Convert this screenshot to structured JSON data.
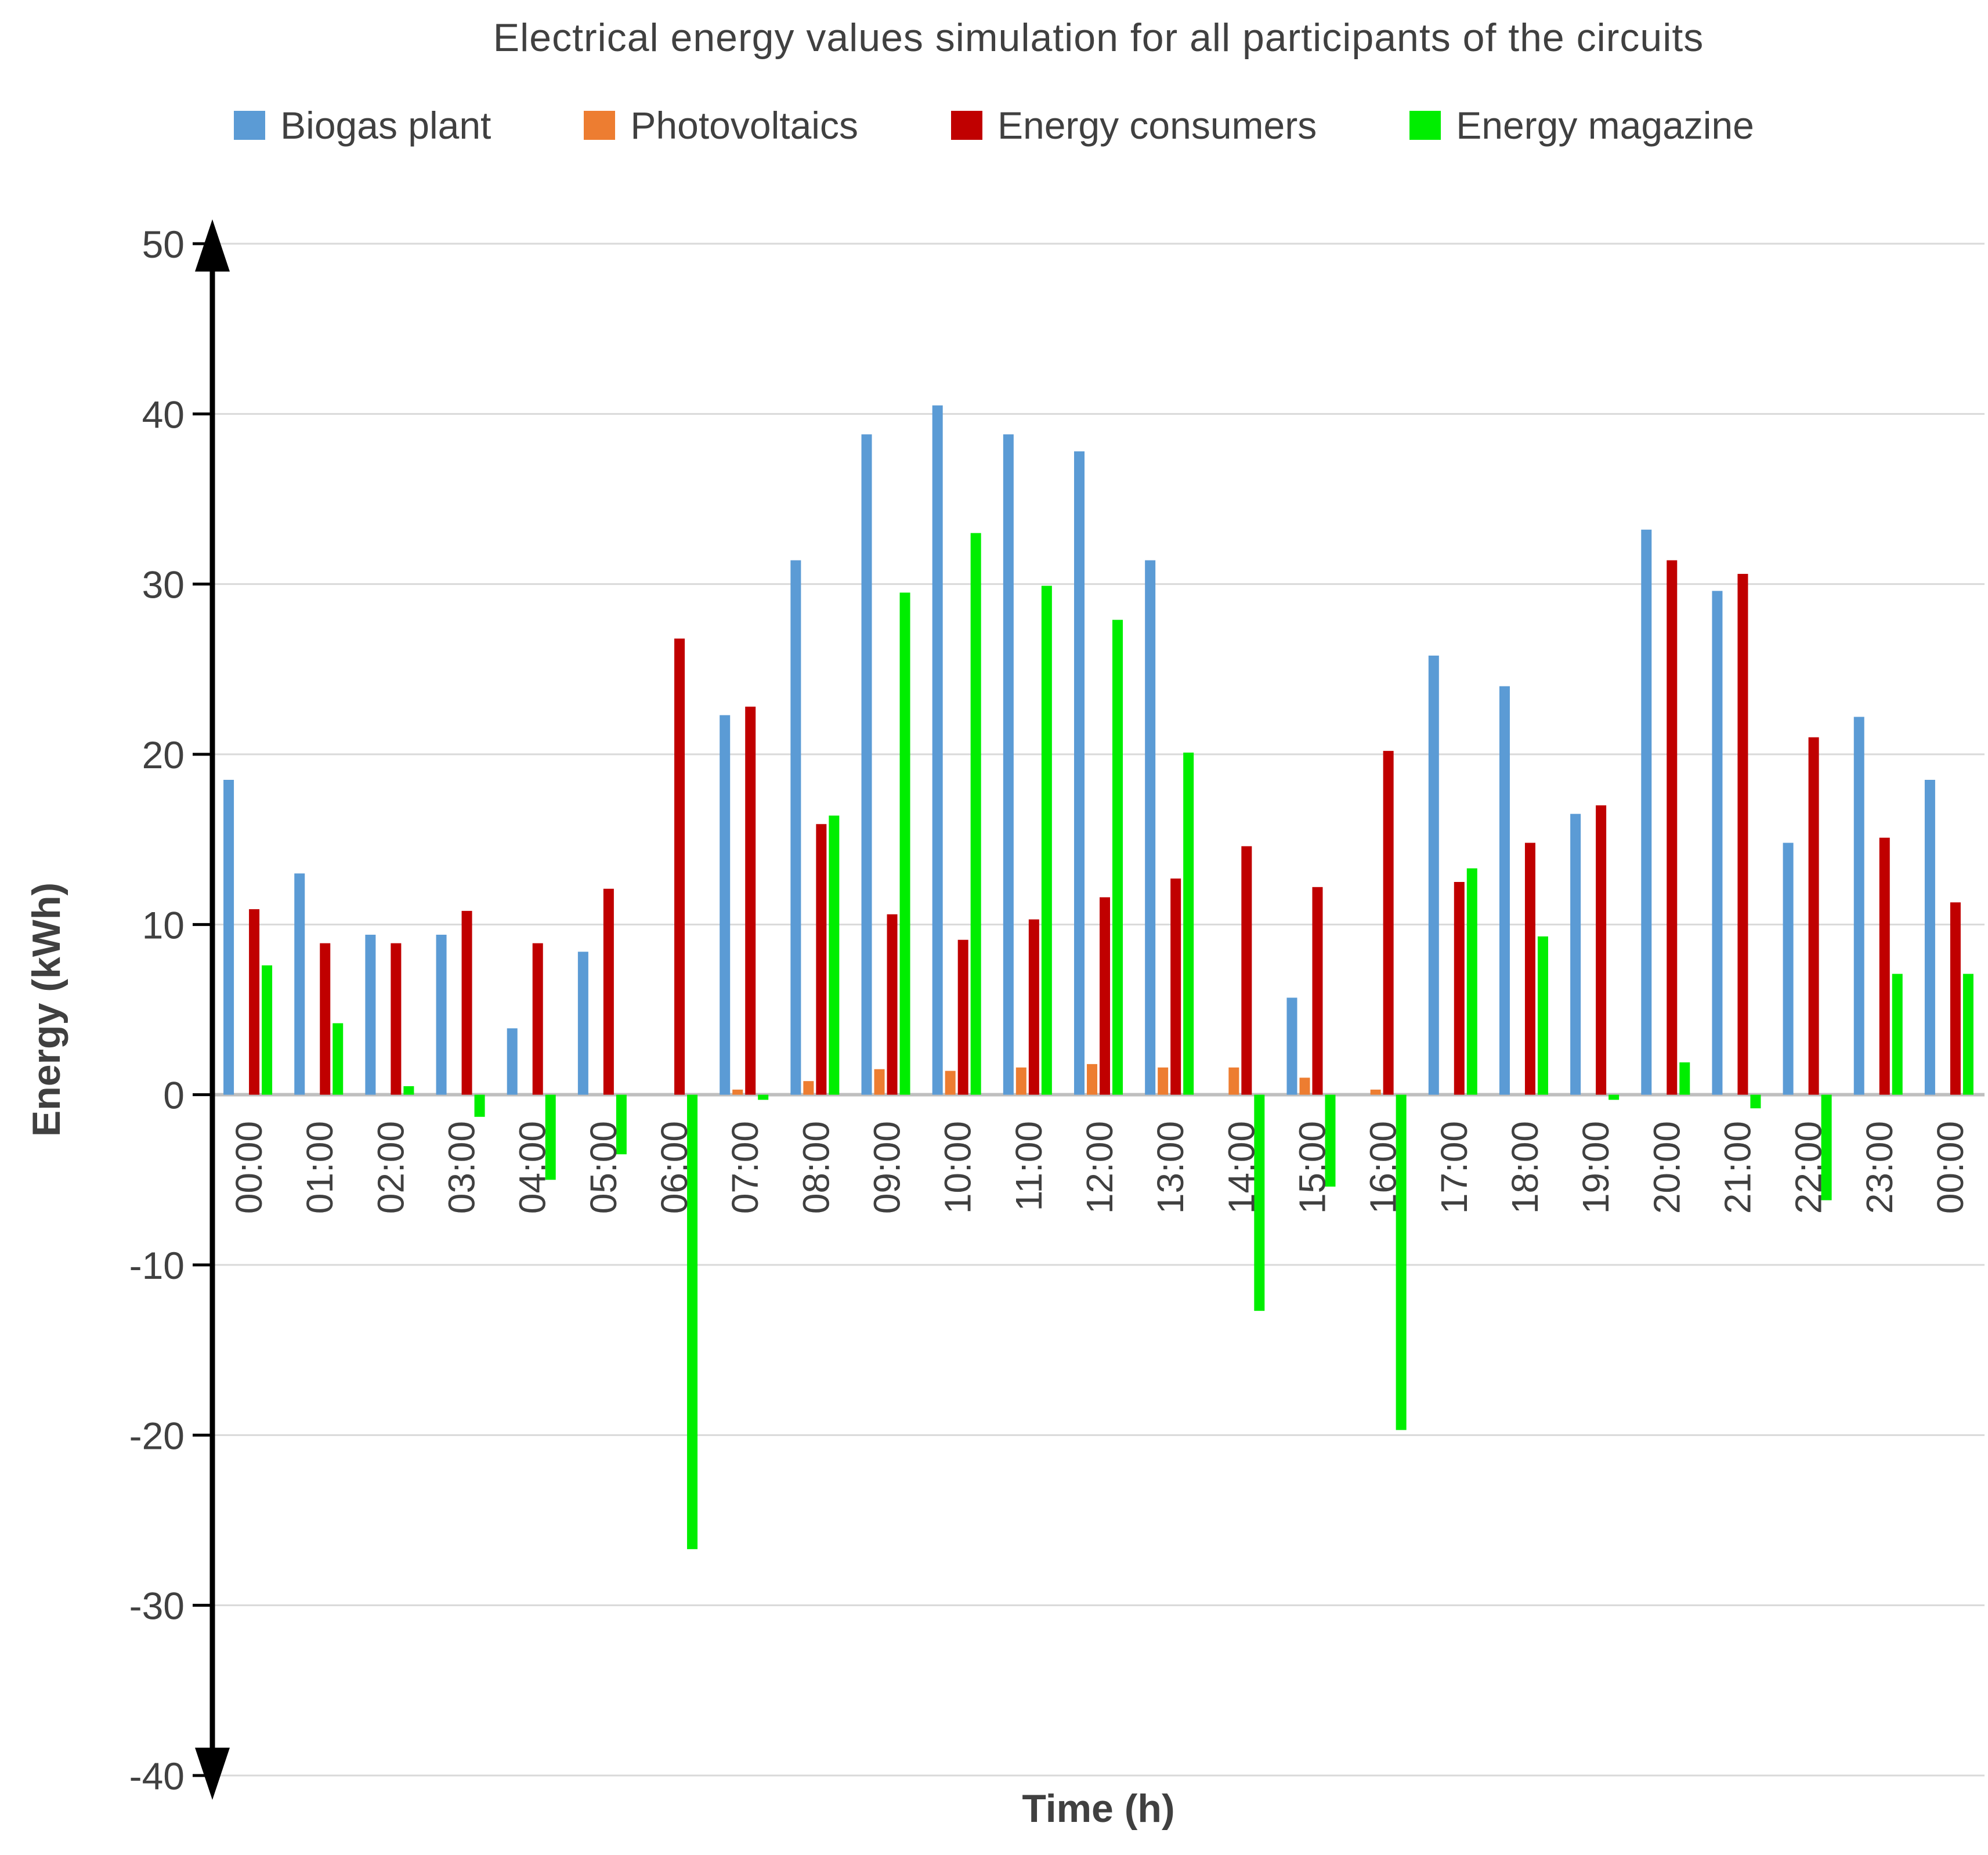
{
  "chart_data": {
    "type": "bar",
    "title": "Electrical energy values simulation for all participants of the circuits",
    "xlabel": "Time (h)",
    "ylabel": "Energy (kWh)",
    "ylim": [
      -40,
      50
    ],
    "ytick_step": 10,
    "grid": true,
    "legend_position": "top",
    "categories": [
      "00:00",
      "01:00",
      "02:00",
      "03:00",
      "04:00",
      "05:00",
      "06:00",
      "07:00",
      "08:00",
      "09:00",
      "10:00",
      "11:00",
      "12:00",
      "13:00",
      "14:00",
      "15:00",
      "16:00",
      "17:00",
      "18:00",
      "19:00",
      "20:00",
      "21:00",
      "22:00",
      "23:00",
      "00:00"
    ],
    "series": [
      {
        "name": "Biogas plant",
        "color": "#5B9BD5",
        "values": [
          18.5,
          13.0,
          9.4,
          9.4,
          3.9,
          8.4,
          0,
          22.3,
          31.4,
          38.8,
          40.5,
          38.8,
          37.8,
          31.4,
          0,
          5.7,
          0,
          25.8,
          24.0,
          16.5,
          33.2,
          29.6,
          14.8,
          22.2,
          18.5
        ]
      },
      {
        "name": "Photovoltaics",
        "color": "#ED7D31",
        "values": [
          0,
          0,
          0,
          0,
          0,
          0,
          0,
          0.3,
          0.8,
          1.5,
          1.4,
          1.6,
          1.8,
          1.6,
          1.6,
          1.0,
          0.3,
          0,
          0,
          0,
          0,
          0,
          0,
          0,
          0
        ]
      },
      {
        "name": "Energy consumers",
        "color": "#C00000",
        "values": [
          10.9,
          8.9,
          8.9,
          10.8,
          8.9,
          12.1,
          26.8,
          22.8,
          15.9,
          10.6,
          9.1,
          10.3,
          11.6,
          12.7,
          14.6,
          12.2,
          20.2,
          12.5,
          14.8,
          17.0,
          31.4,
          30.6,
          21.0,
          15.1,
          11.3
        ]
      },
      {
        "name": "Energy magazine",
        "color": "#00EE00",
        "values": [
          7.6,
          4.2,
          0.5,
          -1.3,
          -5.0,
          -3.5,
          -26.7,
          -0.3,
          16.4,
          29.5,
          33.0,
          29.9,
          27.9,
          20.1,
          -12.7,
          -5.4,
          -19.7,
          13.3,
          9.3,
          -0.3,
          1.9,
          -0.8,
          -6.2,
          7.1,
          7.1
        ]
      }
    ],
    "colors": {
      "gridline": "#D9D9D9",
      "zero_line": "#BFBFBF",
      "axis": "#000000",
      "text": "#404040"
    }
  }
}
